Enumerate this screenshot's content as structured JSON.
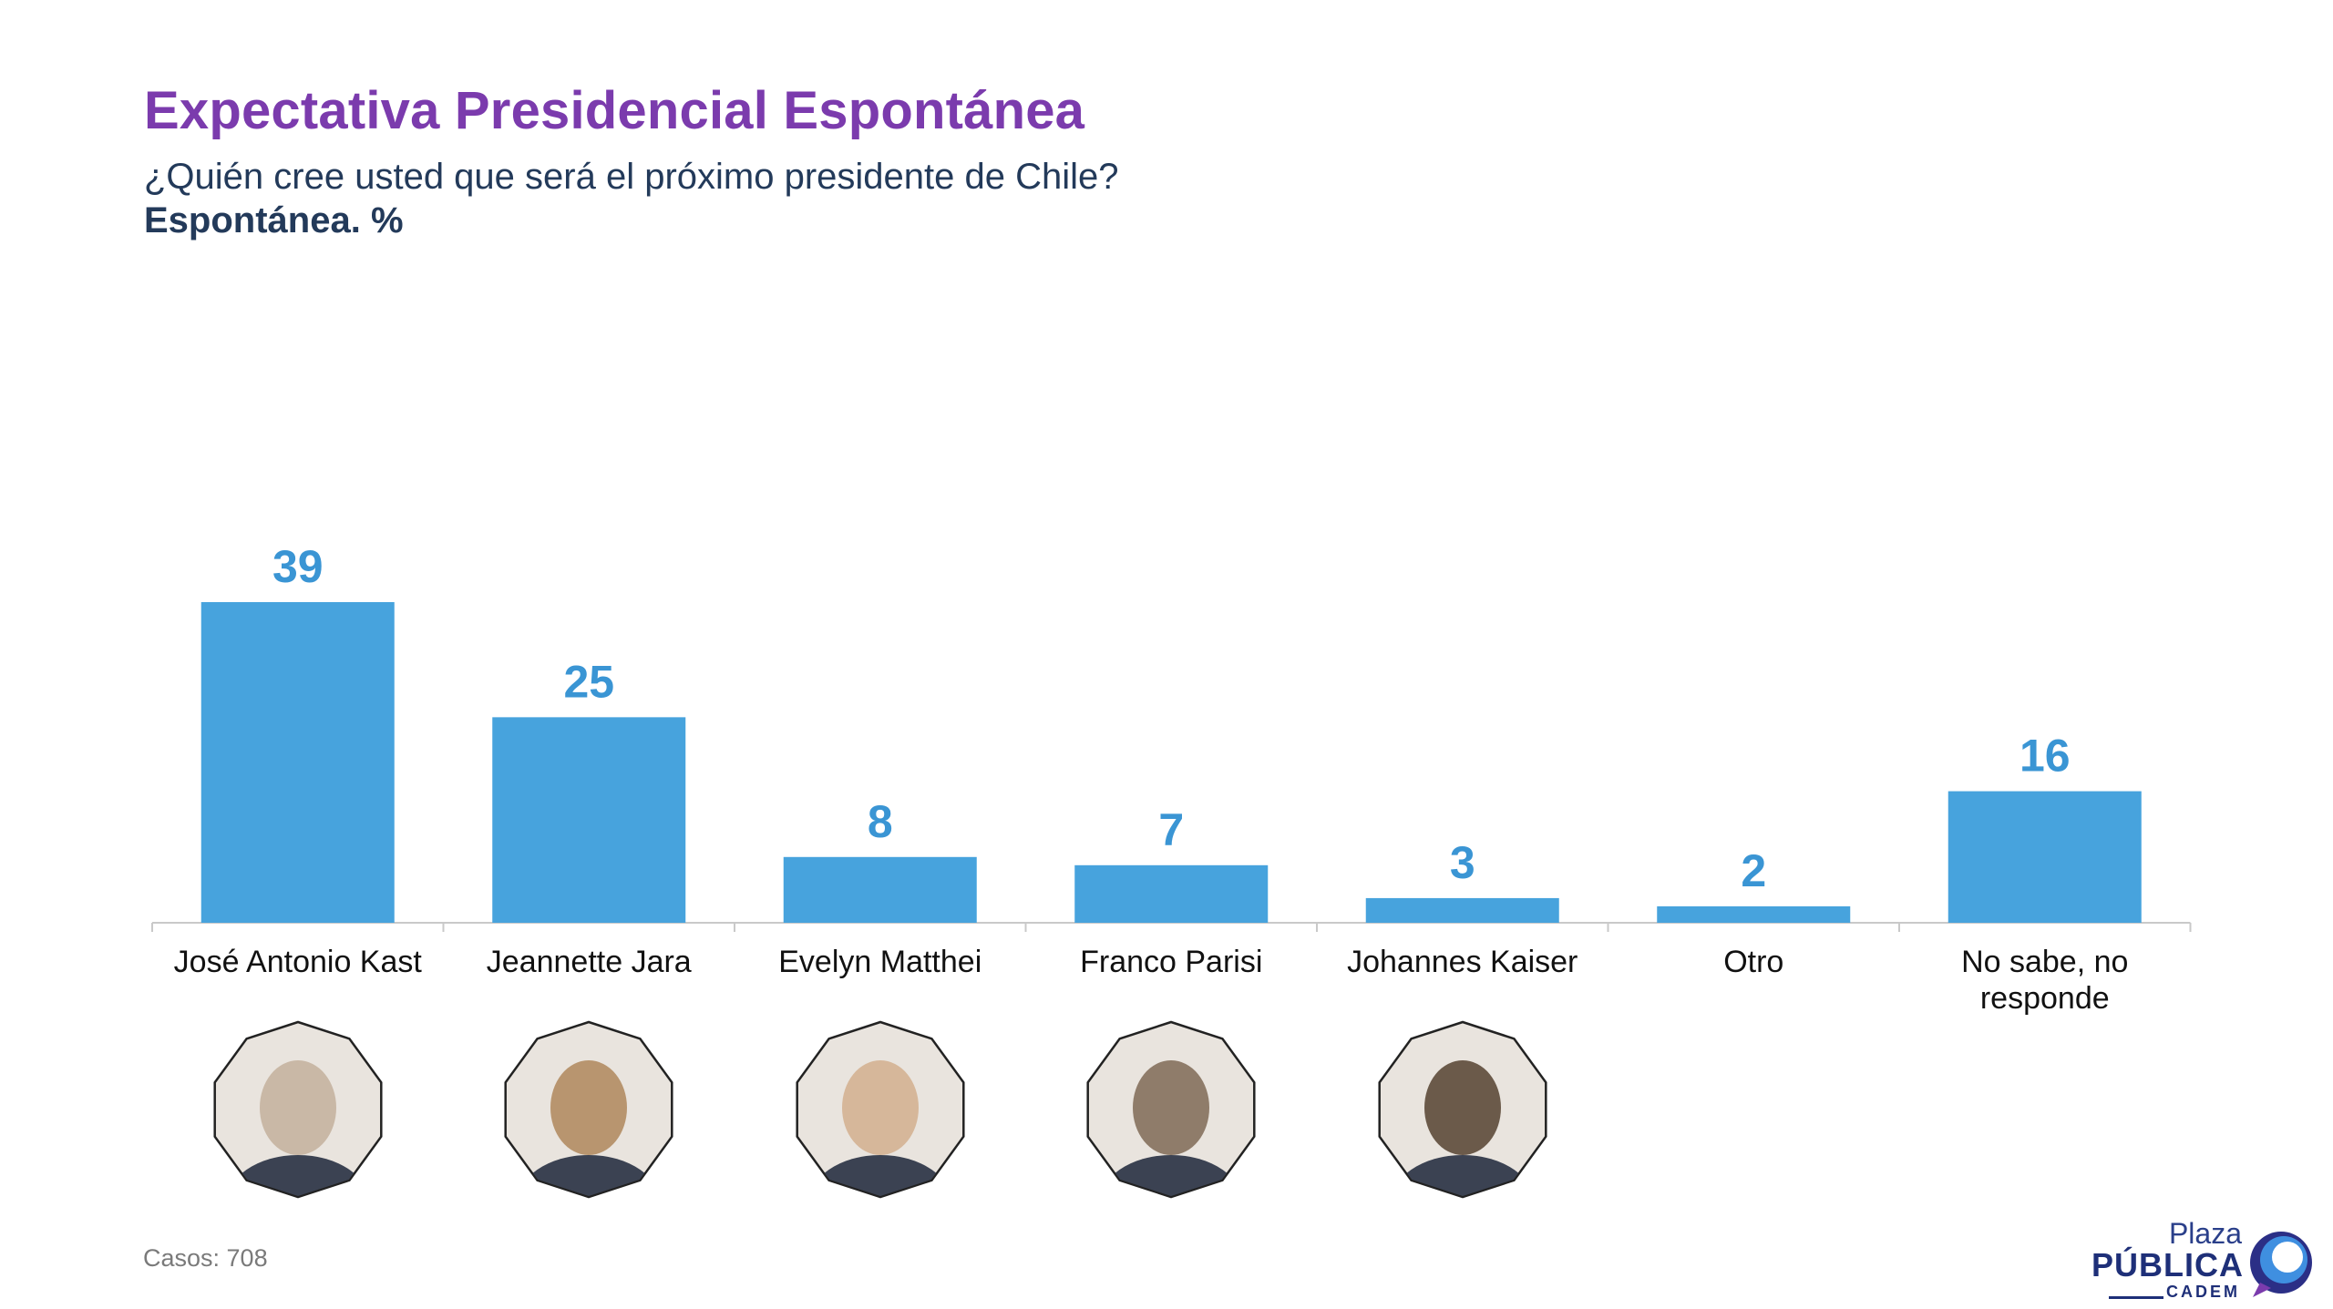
{
  "title": "Expectativa Presidencial Espontánea",
  "subtitle": "¿Quién cree usted que será el próximo presidente de Chile?",
  "unit_label": "Espontánea. %",
  "colors": {
    "bar": "#47a3dd",
    "value_label": "#3a95d4",
    "title": "#7b3bad",
    "text": "#233a5a",
    "axis": "#c9c9c9"
  },
  "chart_data": {
    "type": "bar",
    "categories": [
      "José Antonio Kast",
      "Jeannette Jara",
      "Evelyn Matthei",
      "Franco Parisi",
      "Johannes Kaiser",
      "Otro",
      "No sabe, no responde"
    ],
    "category_lines": [
      [
        "José Antonio Kast"
      ],
      [
        "Jeannette Jara"
      ],
      [
        "Evelyn Matthei"
      ],
      [
        "Franco Parisi"
      ],
      [
        "Johannes Kaiser"
      ],
      [
        "Otro"
      ],
      [
        "No sabe, no",
        "responde"
      ]
    ],
    "values": [
      39,
      25,
      8,
      7,
      3,
      2,
      16
    ],
    "ylim": [
      0,
      39
    ],
    "grid": false,
    "data_labels": true
  },
  "portraits": [
    {
      "icon": "portrait-kast",
      "tone": "#c9b8a6"
    },
    {
      "icon": "portrait-jara",
      "tone": "#b8956f"
    },
    {
      "icon": "portrait-matthei",
      "tone": "#d6b79a"
    },
    {
      "icon": "portrait-parisi",
      "tone": "#8f7c6a"
    },
    {
      "icon": "portrait-kaiser",
      "tone": "#6b5a4a"
    }
  ],
  "footer": {
    "casos": "Casos: 708"
  },
  "logo": {
    "line1": "Plaza",
    "line2": "PÚBLICA",
    "line3": "CADEM"
  }
}
